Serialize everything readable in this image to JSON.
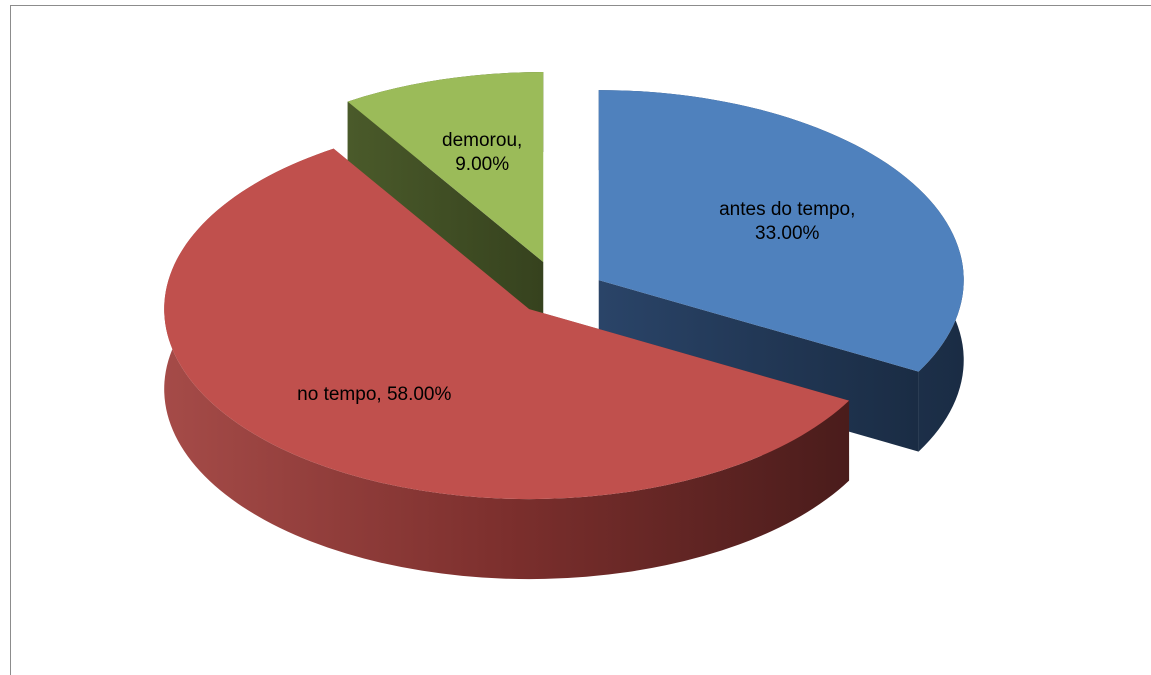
{
  "chart_data": {
    "type": "pie",
    "categories": [
      "antes do tempo",
      "no tempo",
      "demorou"
    ],
    "values": [
      33,
      58,
      9
    ],
    "value_labels": [
      "antes do tempo, 33.00%",
      "no tempo, 58.00%",
      "demorou, 9.00%"
    ],
    "colors": [
      "#4f81bd",
      "#c0504d",
      "#9bbb59"
    ],
    "exploded": true,
    "three_d": true
  }
}
